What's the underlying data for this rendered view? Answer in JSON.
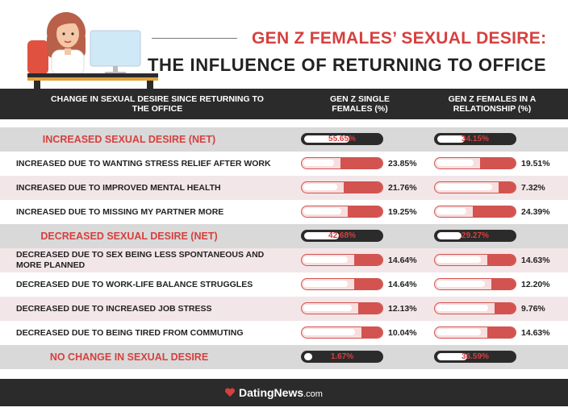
{
  "title": {
    "line1": "GEN Z FEMALES’ SEXUAL DESIRE:",
    "line2": "THE INFLUENCE OF RETURNING TO OFFICE"
  },
  "columns": {
    "category": "CHANGE IN SEXUAL DESIRE SINCE RETURNING TO THE OFFICE",
    "single": "GEN Z SINGLE FEMALES (%)",
    "relationship": "GEN Z FEMALES IN A RELATIONSHIP  (%)"
  },
  "footer": {
    "brand": "DatingNews",
    "suffix": ".com"
  },
  "colors": {
    "accent": "#d6403e",
    "dark": "#2b2b2b",
    "pink": "#f3e6e8",
    "grey": "#d9d9d9"
  },
  "chart_data": {
    "type": "table",
    "series": [
      {
        "name": "GEN Z SINGLE FEMALES (%)",
        "values": [
          55.65,
          23.85,
          21.76,
          19.25,
          42.68,
          14.64,
          14.64,
          12.13,
          10.04,
          1.67
        ]
      },
      {
        "name": "GEN Z FEMALES IN A RELATIONSHIP  (%)",
        "values": [
          34.15,
          19.51,
          7.32,
          24.39,
          29.27,
          14.63,
          12.2,
          9.76,
          14.63,
          36.59
        ]
      }
    ],
    "rows": [
      {
        "label": "INCREASED SEXUAL DESIRE (NET)",
        "kind": "net",
        "single": 55.65,
        "single_label": "55.65%",
        "rel": 34.15,
        "rel_label": "34.15%"
      },
      {
        "label": "INCREASED DUE TO WANTING STRESS RELIEF AFTER WORK",
        "kind": "reg",
        "single": 23.85,
        "single_label": "23.85%",
        "rel": 19.51,
        "rel_label": "19.51%"
      },
      {
        "label": "INCREASED DUE TO IMPROVED MENTAL HEALTH",
        "kind": "reg",
        "single": 21.76,
        "single_label": "21.76%",
        "rel": 7.32,
        "rel_label": "7.32%"
      },
      {
        "label": "INCREASED DUE TO MISSING MY PARTNER MORE",
        "kind": "reg",
        "single": 19.25,
        "single_label": "19.25%",
        "rel": 24.39,
        "rel_label": "24.39%"
      },
      {
        "label": "DECREASED SEXUAL DESIRE (NET)",
        "kind": "net",
        "single": 42.68,
        "single_label": "42.68%",
        "rel": 29.27,
        "rel_label": "29.27%"
      },
      {
        "label": "DECREASED DUE TO SEX BEING LESS SPONTANEOUS AND MORE PLANNED",
        "kind": "reg",
        "single": 14.64,
        "single_label": "14.64%",
        "rel": 14.63,
        "rel_label": "14.63%"
      },
      {
        "label": "DECREASED DUE TO WORK-LIFE BALANCE STRUGGLES",
        "kind": "reg",
        "single": 14.64,
        "single_label": "14.64%",
        "rel": 12.2,
        "rel_label": "12.20%"
      },
      {
        "label": "DECREASED DUE TO INCREASED JOB STRESS",
        "kind": "reg",
        "single": 12.13,
        "single_label": "12.13%",
        "rel": 9.76,
        "rel_label": "9.76%"
      },
      {
        "label": "DECREASED DUE TO BEING TIRED FROM COMMUTING",
        "kind": "reg",
        "single": 10.04,
        "single_label": "10.04%",
        "rel": 14.63,
        "rel_label": "14.63%"
      },
      {
        "label": "NO CHANGE IN SEXUAL DESIRE",
        "kind": "net",
        "single": 1.67,
        "single_label": "1.67%",
        "rel": 36.59,
        "rel_label": "36.59%"
      }
    ]
  }
}
